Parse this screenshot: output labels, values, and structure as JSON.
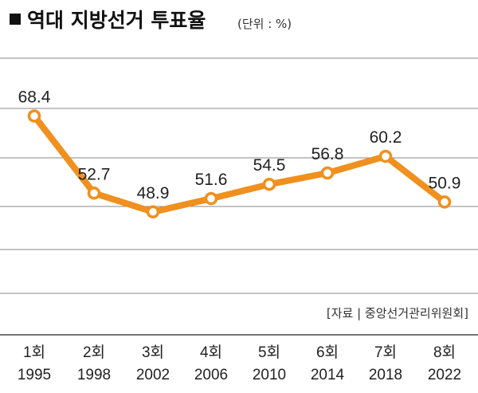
{
  "header": {
    "title": "역대 지방선거 투표율",
    "unit": "(단위 : %)"
  },
  "source": "[자료 | 중앙선거관리위원회]",
  "colors": {
    "line": "#f0901e",
    "marker_fill": "#ffffff",
    "grid": "#888888",
    "title_square": "#111111"
  },
  "chart_data": {
    "type": "line",
    "title": "역대 지방선거 투표율",
    "unit": "%",
    "categories": [
      "1회",
      "2회",
      "3회",
      "4회",
      "5회",
      "6회",
      "7회",
      "8회"
    ],
    "years": [
      "1995",
      "1998",
      "2002",
      "2006",
      "2010",
      "2014",
      "2018",
      "2022"
    ],
    "values": [
      68.4,
      52.7,
      48.9,
      51.6,
      54.5,
      56.8,
      60.2,
      50.9
    ],
    "labels": [
      "68.4",
      "52.7",
      "48.9",
      "51.6",
      "54.5",
      "56.8",
      "60.2",
      "50.9"
    ],
    "ylim": [
      40,
      70
    ],
    "grid": true,
    "legend": "none"
  }
}
